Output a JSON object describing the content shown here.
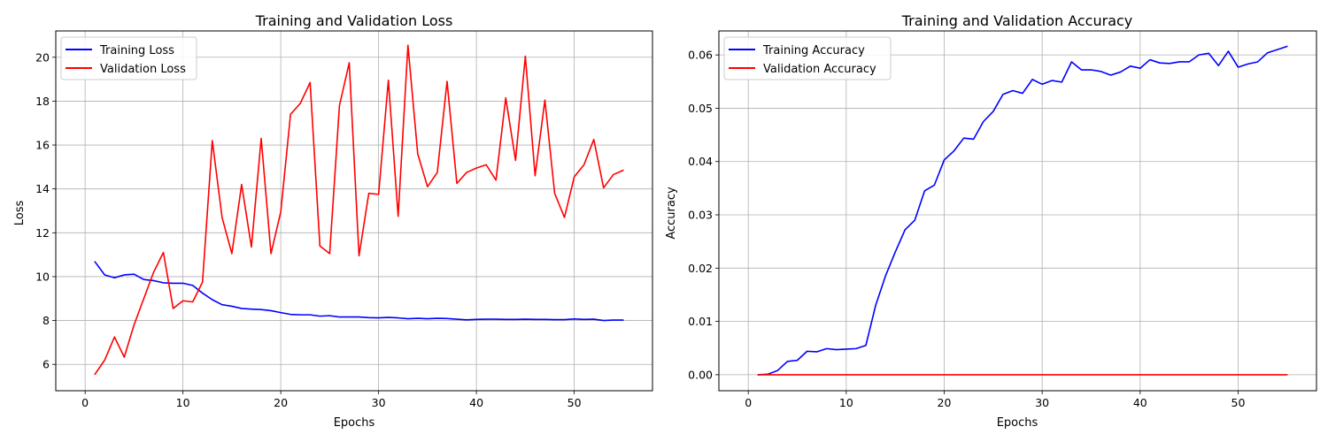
{
  "chart_data": [
    {
      "type": "line",
      "title": "Training and Validation Loss",
      "xlabel": "Epochs",
      "ylabel": "Loss",
      "xlim": [
        -3,
        58
      ],
      "ylim": [
        4.8,
        21.2
      ],
      "xticks": [
        0,
        10,
        20,
        30,
        40,
        50
      ],
      "yticks": [
        6,
        8,
        10,
        12,
        14,
        16,
        18,
        20
      ],
      "grid": true,
      "legend_position": "top-left",
      "x": [
        1,
        2,
        3,
        4,
        5,
        6,
        7,
        8,
        9,
        10,
        11,
        12,
        13,
        14,
        15,
        16,
        17,
        18,
        19,
        20,
        21,
        22,
        23,
        24,
        25,
        26,
        27,
        28,
        29,
        30,
        31,
        32,
        33,
        34,
        35,
        36,
        37,
        38,
        39,
        40,
        41,
        42,
        43,
        44,
        45,
        46,
        47,
        48,
        49,
        50,
        51,
        52,
        53,
        54,
        55
      ],
      "series": [
        {
          "name": "Training Loss",
          "color": "#0000ff",
          "values": [
            10.68,
            10.08,
            9.95,
            10.08,
            10.11,
            9.87,
            9.82,
            9.72,
            9.7,
            9.7,
            9.6,
            9.25,
            8.95,
            8.72,
            8.65,
            8.55,
            8.52,
            8.5,
            8.45,
            8.36,
            8.28,
            8.26,
            8.26,
            8.2,
            8.22,
            8.16,
            8.16,
            8.16,
            8.13,
            8.12,
            8.14,
            8.12,
            8.08,
            8.1,
            8.08,
            8.1,
            8.09,
            8.06,
            8.03,
            8.05,
            8.06,
            8.06,
            8.05,
            8.05,
            8.06,
            8.05,
            8.05,
            8.04,
            8.04,
            8.07,
            8.05,
            8.06,
            8.0,
            8.02,
            8.02
          ]
        },
        {
          "name": "Validation Loss",
          "color": "#ff0000",
          "values": [
            5.55,
            6.2,
            7.25,
            6.33,
            7.8,
            9.0,
            10.2,
            11.1,
            8.55,
            8.9,
            8.85,
            9.75,
            16.2,
            12.7,
            11.05,
            14.2,
            11.35,
            16.3,
            11.05,
            12.95,
            17.4,
            17.9,
            18.85,
            11.4,
            11.05,
            17.8,
            19.75,
            10.95,
            13.8,
            13.75,
            18.95,
            12.75,
            20.55,
            15.6,
            14.1,
            14.75,
            18.9,
            14.25,
            14.75,
            14.95,
            15.1,
            14.4,
            18.15,
            15.3,
            20.05,
            14.6,
            18.05,
            13.8,
            12.7,
            14.55,
            15.1,
            16.25,
            14.05,
            14.65,
            14.85
          ]
        }
      ]
    },
    {
      "type": "line",
      "title": "Training and Validation Accuracy",
      "xlabel": "Epochs",
      "ylabel": "Accuracy",
      "xlim": [
        -3,
        58
      ],
      "ylim": [
        -0.003,
        0.0645
      ],
      "xticks": [
        0,
        10,
        20,
        30,
        40,
        50
      ],
      "yticks": [
        0.0,
        0.01,
        0.02,
        0.03,
        0.04,
        0.05,
        0.06
      ],
      "ytick_labels": [
        "0.00",
        "0.01",
        "0.02",
        "0.03",
        "0.04",
        "0.05",
        "0.06"
      ],
      "grid": true,
      "legend_position": "top-left",
      "x": [
        1,
        2,
        3,
        4,
        5,
        6,
        7,
        8,
        9,
        10,
        11,
        12,
        13,
        14,
        15,
        16,
        17,
        18,
        19,
        20,
        21,
        22,
        23,
        24,
        25,
        26,
        27,
        28,
        29,
        30,
        31,
        32,
        33,
        34,
        35,
        36,
        37,
        38,
        39,
        40,
        41,
        42,
        43,
        44,
        45,
        46,
        47,
        48,
        49,
        50,
        51,
        52,
        53,
        54,
        55
      ],
      "series": [
        {
          "name": "Training Accuracy",
          "color": "#0000ff",
          "values": [
            0.0,
            0.0001,
            0.0008,
            0.0025,
            0.0027,
            0.0044,
            0.0043,
            0.0049,
            0.0047,
            0.0048,
            0.0049,
            0.0055,
            0.013,
            0.0185,
            0.023,
            0.0272,
            0.029,
            0.0345,
            0.0356,
            0.0403,
            0.042,
            0.0444,
            0.0442,
            0.0475,
            0.0494,
            0.0526,
            0.0533,
            0.0528,
            0.0554,
            0.0545,
            0.0552,
            0.0549,
            0.0587,
            0.0572,
            0.0572,
            0.0569,
            0.0562,
            0.0568,
            0.0579,
            0.0575,
            0.0591,
            0.0585,
            0.0584,
            0.0587,
            0.0587,
            0.06,
            0.0603,
            0.058,
            0.0607,
            0.0577,
            0.0583,
            0.0587,
            0.0604,
            0.061,
            0.0616
          ]
        },
        {
          "name": "Validation Accuracy",
          "color": "#ff0000",
          "values": [
            0,
            0,
            0,
            0,
            0,
            0,
            0,
            0,
            0,
            0,
            0,
            0,
            0,
            0,
            0,
            0,
            0,
            0,
            0,
            0,
            0,
            0,
            0,
            0,
            0,
            0,
            0,
            0,
            0,
            0,
            0,
            0,
            0,
            0,
            0,
            0,
            0,
            0,
            0,
            0,
            0,
            0,
            0,
            0,
            0,
            0,
            0,
            0,
            0,
            0,
            0,
            0,
            0,
            0,
            0
          ]
        }
      ]
    }
  ]
}
